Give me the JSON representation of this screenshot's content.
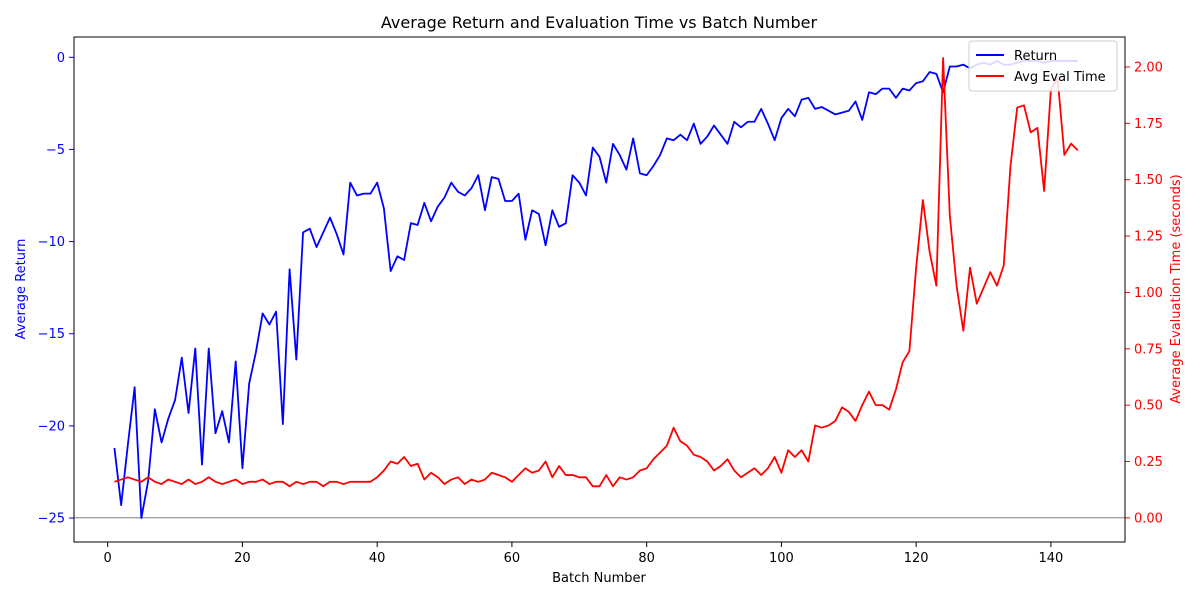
{
  "chart_data": {
    "type": "line",
    "title": "Average Return and Evaluation Time vs Batch Number",
    "xlabel": "Batch Number",
    "ylabel_left": "Average Return",
    "ylabel_right": "Average Evaluation Time (seconds)",
    "xlim": [
      -5,
      151
    ],
    "ylim_left": [
      -26.3,
      1.1
    ],
    "ylim_right": [
      -0.107,
      2.133
    ],
    "x_ticks": [
      0,
      20,
      40,
      60,
      80,
      100,
      120,
      140
    ],
    "y_ticks_left": [
      -25,
      -20,
      -15,
      -10,
      -5,
      0
    ],
    "y_ticks_right": [
      0.0,
      0.25,
      0.5,
      0.75,
      1.0,
      1.25,
      1.5,
      1.75,
      2.0
    ],
    "x_tick_labels": [
      "0",
      "20",
      "40",
      "60",
      "80",
      "100",
      "120",
      "140"
    ],
    "y_tick_labels_left": [
      "−25",
      "−20",
      "−15",
      "−10",
      "−5",
      "0"
    ],
    "y_tick_labels_right": [
      "0.00",
      "0.25",
      "0.50",
      "0.75",
      "1.00",
      "1.25",
      "1.50",
      "1.75",
      "2.00"
    ],
    "hline_right": 0.0,
    "grid": false,
    "legend_position": "top-right",
    "colors": {
      "left_axis": "#0000ff",
      "right_axis": "#ff0000"
    },
    "series": [
      {
        "name": "Return",
        "axis": "left",
        "color": "#0000ff",
        "values": [
          -21.2,
          -24.3,
          -21.0,
          -17.9,
          -25.0,
          -23.0,
          -19.1,
          -20.9,
          -19.6,
          -18.6,
          -16.3,
          -19.3,
          -15.8,
          -22.1,
          -15.8,
          -20.4,
          -19.2,
          -20.9,
          -16.5,
          -22.3,
          -17.7,
          -16.0,
          -13.9,
          -14.5,
          -13.8,
          -19.9,
          -11.5,
          -16.4,
          -9.5,
          -9.3,
          -10.3,
          -9.5,
          -8.7,
          -9.6,
          -10.7,
          -6.8,
          -7.5,
          -7.4,
          -7.4,
          -6.8,
          -8.2,
          -11.6,
          -10.8,
          -11.0,
          -9.0,
          -9.1,
          -7.9,
          -8.9,
          -8.1,
          -7.6,
          -6.8,
          -7.3,
          -7.5,
          -7.1,
          -6.4,
          -8.3,
          -6.5,
          -6.6,
          -7.8,
          -7.8,
          -7.4,
          -9.9,
          -8.3,
          -8.5,
          -10.2,
          -8.3,
          -9.2,
          -9.0,
          -6.4,
          -6.8,
          -7.5,
          -4.9,
          -5.4,
          -6.8,
          -4.7,
          -5.3,
          -6.1,
          -4.4,
          -6.3,
          -6.4,
          -5.9,
          -5.3,
          -4.4,
          -4.5,
          -4.2,
          -4.5,
          -3.6,
          -4.7,
          -4.3,
          -3.7,
          -4.2,
          -4.7,
          -3.5,
          -3.8,
          -3.5,
          -3.5,
          -2.8,
          -3.6,
          -4.5,
          -3.3,
          -2.8,
          -3.2,
          -2.3,
          -2.2,
          -2.8,
          -2.7,
          -2.9,
          -3.1,
          -3.0,
          -2.9,
          -2.4,
          -3.4,
          -1.9,
          -2.0,
          -1.7,
          -1.7,
          -2.2,
          -1.7,
          -1.8,
          -1.4,
          -1.3,
          -0.8,
          -0.9,
          -1.9,
          -0.5,
          -0.5,
          -0.4,
          -0.6,
          -0.4,
          -0.3,
          -0.4,
          -0.2,
          -0.4,
          -0.4,
          -0.3,
          -0.2,
          -0.2,
          -0.2,
          -0.3,
          -0.2,
          -0.2,
          -0.2,
          -0.2,
          -0.2
        ]
      },
      {
        "name": "Avg Eval Time",
        "axis": "right",
        "color": "#ff0000",
        "values": [
          0.16,
          0.17,
          0.18,
          0.17,
          0.16,
          0.18,
          0.16,
          0.15,
          0.17,
          0.16,
          0.15,
          0.17,
          0.15,
          0.16,
          0.18,
          0.16,
          0.15,
          0.16,
          0.17,
          0.15,
          0.16,
          0.16,
          0.17,
          0.15,
          0.16,
          0.16,
          0.14,
          0.16,
          0.15,
          0.16,
          0.16,
          0.14,
          0.16,
          0.16,
          0.15,
          0.16,
          0.16,
          0.16,
          0.16,
          0.18,
          0.21,
          0.25,
          0.24,
          0.27,
          0.23,
          0.24,
          0.17,
          0.2,
          0.18,
          0.15,
          0.17,
          0.18,
          0.15,
          0.17,
          0.16,
          0.17,
          0.2,
          0.19,
          0.18,
          0.16,
          0.19,
          0.22,
          0.2,
          0.21,
          0.25,
          0.18,
          0.23,
          0.19,
          0.19,
          0.18,
          0.18,
          0.14,
          0.14,
          0.19,
          0.14,
          0.18,
          0.17,
          0.18,
          0.21,
          0.22,
          0.26,
          0.29,
          0.32,
          0.4,
          0.34,
          0.32,
          0.28,
          0.27,
          0.25,
          0.21,
          0.23,
          0.26,
          0.21,
          0.18,
          0.2,
          0.22,
          0.19,
          0.22,
          0.27,
          0.2,
          0.3,
          0.27,
          0.3,
          0.25,
          0.41,
          0.4,
          0.41,
          0.43,
          0.49,
          0.47,
          0.43,
          0.5,
          0.56,
          0.5,
          0.5,
          0.48,
          0.57,
          0.69,
          0.74,
          1.11,
          1.41,
          1.18,
          1.03,
          2.04,
          1.34,
          1.03,
          0.83,
          1.11,
          0.95,
          1.02,
          1.09,
          1.03,
          1.12,
          1.56,
          1.82,
          1.83,
          1.71,
          1.73,
          1.45,
          1.9,
          1.95,
          1.61,
          1.66,
          1.63
        ]
      }
    ]
  }
}
